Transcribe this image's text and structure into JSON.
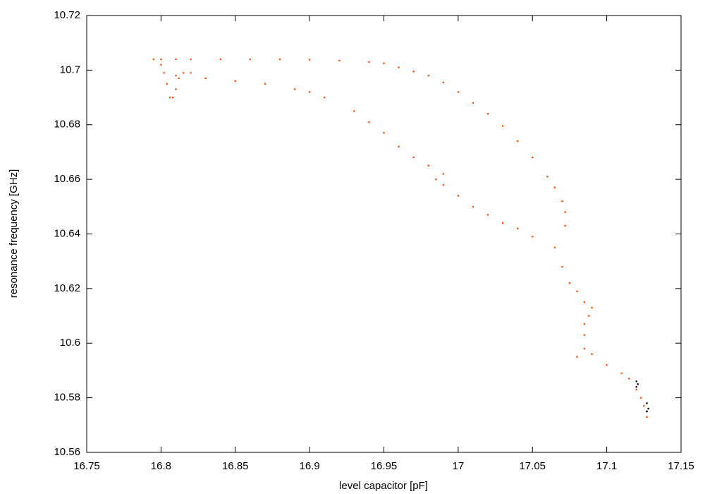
{
  "chart_data": {
    "type": "scatter",
    "xlabel": "level capacitor [pF]",
    "ylabel": "resonance frequency [GHz]",
    "xlim": [
      16.75,
      17.15
    ],
    "ylim": [
      10.56,
      10.72
    ],
    "xticks": [
      16.75,
      16.8,
      16.85,
      16.9,
      16.95,
      17,
      17.05,
      17.1,
      17.15
    ],
    "yticks": [
      10.56,
      10.58,
      10.6,
      10.62,
      10.64,
      10.66,
      10.68,
      10.7,
      10.72
    ],
    "series": [
      {
        "color": "#ff5511",
        "x": [
          16.795,
          16.8,
          16.81,
          16.82,
          16.84,
          16.86,
          16.88,
          16.9,
          16.92,
          16.94,
          16.95,
          16.96,
          16.97,
          16.98,
          16.99,
          17.0,
          17.01,
          17.02,
          17.03,
          17.04,
          17.05,
          17.06,
          17.065,
          17.07,
          17.072,
          17.072,
          16.8,
          16.802,
          16.804,
          16.806,
          16.808,
          16.81,
          16.812,
          16.815,
          16.82,
          16.81,
          16.83,
          16.85,
          16.87,
          16.89,
          16.9,
          16.91,
          16.93,
          16.94,
          16.95,
          16.96,
          16.97,
          16.98,
          16.99,
          16.985,
          16.99,
          17.0,
          17.01,
          17.02,
          17.03,
          17.04,
          17.05,
          17.065,
          17.07,
          17.075,
          17.08,
          17.085,
          17.09,
          17.088,
          17.085,
          17.085,
          17.085,
          17.08,
          17.09,
          17.1,
          17.11,
          17.115,
          17.12,
          17.123,
          17.125,
          17.127,
          17.127
        ],
        "values": [
          10.704,
          10.704,
          10.704,
          10.704,
          10.704,
          10.704,
          10.704,
          10.7038,
          10.7035,
          10.703,
          10.7025,
          10.701,
          10.6995,
          10.698,
          10.6955,
          10.692,
          10.688,
          10.684,
          10.6795,
          10.674,
          10.668,
          10.661,
          10.657,
          10.652,
          10.648,
          10.643,
          10.702,
          10.699,
          10.695,
          10.69,
          10.69,
          10.693,
          10.697,
          10.699,
          10.699,
          10.698,
          10.697,
          10.696,
          10.695,
          10.693,
          10.692,
          10.69,
          10.685,
          10.681,
          10.677,
          10.672,
          10.668,
          10.665,
          10.662,
          10.66,
          10.658,
          10.654,
          10.65,
          10.647,
          10.644,
          10.642,
          10.639,
          10.635,
          10.628,
          10.622,
          10.619,
          10.615,
          10.613,
          10.61,
          10.607,
          10.603,
          10.598,
          10.595,
          10.596,
          10.592,
          10.589,
          10.587,
          10.583,
          10.58,
          10.577,
          10.575,
          10.573
        ]
      },
      {
        "color": "#000000",
        "x": [
          17.12,
          17.121,
          17.12,
          17.127,
          17.128,
          17.127
        ],
        "values": [
          10.586,
          10.585,
          10.584,
          10.578,
          10.576,
          10.575
        ]
      }
    ]
  }
}
